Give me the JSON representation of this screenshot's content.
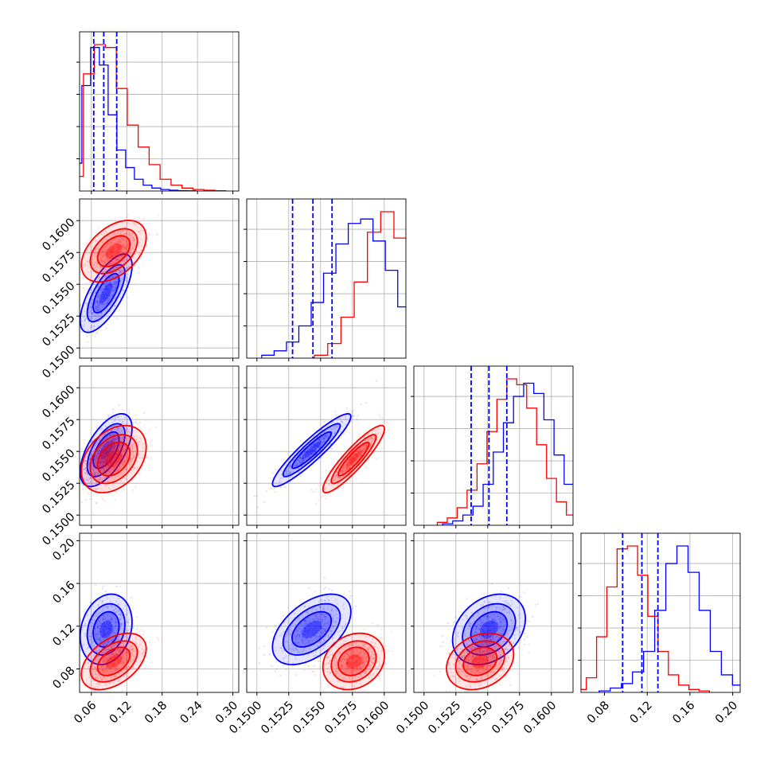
{
  "chart_data": {
    "type": "corner",
    "grid": true,
    "colors": {
      "series_a": "#0000ff",
      "series_b": "#ff0000",
      "grid": "#b0b0b0"
    },
    "axes": [
      {
        "range": [
          0.04,
          0.31
        ],
        "ticks": [
          0.06,
          0.12,
          0.18,
          0.24,
          0.3
        ],
        "tick_labels": [
          "0.06",
          "0.12",
          "0.18",
          "0.24",
          "0.30"
        ]
      },
      {
        "range": [
          0.1492,
          0.1617
        ],
        "ticks": [
          0.15,
          0.1525,
          0.155,
          0.1575,
          0.16
        ],
        "tick_labels": [
          "0.1500",
          "0.1525",
          "0.1550",
          "0.1575",
          "0.1600"
        ]
      },
      {
        "range": [
          0.1492,
          0.1617
        ],
        "ticks": [
          0.15,
          0.1525,
          0.155,
          0.1575,
          0.16
        ],
        "tick_labels": [
          "0.1500",
          "0.1525",
          "0.1550",
          "0.1575",
          "0.1600"
        ]
      },
      {
        "range": [
          0.058,
          0.207
        ],
        "ticks": [
          0.08,
          0.12,
          0.16,
          0.2
        ],
        "tick_labels": [
          "0.08",
          "0.12",
          "0.16",
          "0.20"
        ]
      }
    ],
    "series": [
      {
        "name": "",
        "color": "#0000ff",
        "mean": [
          0.085,
          0.1543,
          0.1551,
          0.117
        ],
        "std": [
          0.02,
          0.0014,
          0.0013,
          0.015
        ],
        "cov": [
          [
            0.0004,
            1.96e-05,
            1.56e-05,
            6e-05
          ],
          [
            1.96e-05,
            1.96e-06,
            1.68e-06,
            1.05e-05
          ],
          [
            1.56e-05,
            1.68e-06,
            1.69e-06,
            5.9e-06
          ],
          [
            6e-05,
            1.05e-05,
            5.9e-06,
            0.000225
          ]
        ],
        "quantile_lines": [
          [
            0.064,
            0.081,
            0.103
          ],
          [
            0.1528,
            0.1544,
            0.1559
          ],
          [
            0.1537,
            0.1551,
            0.1565
          ],
          [
            0.097,
            0.115,
            0.13
          ]
        ],
        "hist": [
          [
            0.19,
            0.72,
            0.98,
            0.86,
            0.52,
            0.28,
            0.16,
            0.08,
            0.04,
            0.02,
            0.01,
            0.005,
            0.002,
            0.001
          ],
          [
            0.02,
            0.05,
            0.11,
            0.22,
            0.38,
            0.58,
            0.78,
            0.92,
            0.95,
            0.8,
            0.6,
            0.35,
            0.15,
            0.04,
            0.01
          ],
          [
            0.01,
            0.03,
            0.07,
            0.13,
            0.28,
            0.5,
            0.7,
            0.88,
            0.97,
            0.9,
            0.72,
            0.48,
            0.28,
            0.13,
            0.05,
            0.02,
            0.01
          ],
          [
            0.01,
            0.03,
            0.06,
            0.14,
            0.28,
            0.56,
            0.88,
            1.0,
            0.82,
            0.56,
            0.28,
            0.12,
            0.05,
            0.02,
            0.01
          ]
        ]
      },
      {
        "name": "",
        "color": "#ff0000",
        "mean": [
          0.098,
          0.1576,
          0.1544,
          0.087
        ],
        "std": [
          0.025,
          0.0011,
          0.0012,
          0.012
        ],
        "cov": [
          [
            0.000625,
            1.24e-05,
            1.05e-05,
            0.000135
          ],
          [
            1.24e-05,
            1.21e-06,
            1.19e-06,
            2.6e-06
          ],
          [
            1.05e-05,
            1.19e-06,
            1.44e-06,
            3.6e-06
          ],
          [
            0.000135,
            2.6e-06,
            3.6e-06,
            0.000144
          ]
        ],
        "hist": [
          [
            0.1,
            0.8,
            1.0,
            0.98,
            0.7,
            0.45,
            0.3,
            0.18,
            0.08,
            0.04,
            0.02,
            0.01,
            0.005,
            0.002
          ],
          [
            0.02,
            0.1,
            0.28,
            0.52,
            0.86,
            1.0,
            0.82,
            0.56,
            0.3,
            0.12,
            0.04
          ],
          [
            0.02,
            0.05,
            0.12,
            0.24,
            0.42,
            0.64,
            0.86,
            1.0,
            0.96,
            0.8,
            0.55,
            0.32,
            0.16,
            0.07,
            0.03,
            0.01
          ],
          [
            0.02,
            0.1,
            0.38,
            0.72,
            0.98,
            1.0,
            0.8,
            0.52,
            0.28,
            0.12,
            0.05,
            0.02,
            0.01
          ]
        ]
      }
    ]
  }
}
